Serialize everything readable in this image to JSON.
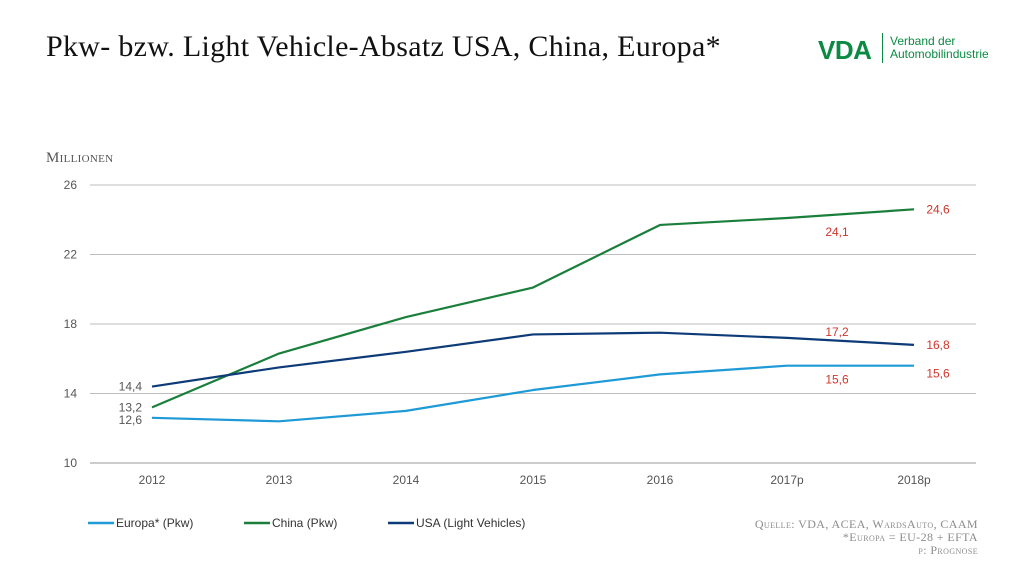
{
  "title": "Pkw- bzw. Light Vehicle-Absatz USA, China, Europa*",
  "logo": {
    "mark": "VDA",
    "line1": "Verband der",
    "line2": "Automobilindustrie",
    "color": "#0b8a43"
  },
  "unit_label": "Millionen",
  "source": [
    "Quelle: VDA, ACEA, WardsAuto, CAAM",
    "*Europa = EU-28 + EFTA",
    "p: Prognose"
  ],
  "chart_data": {
    "type": "line",
    "categories": [
      "2012",
      "2013",
      "2014",
      "2015",
      "2016",
      "2017p",
      "2018p"
    ],
    "ylim": [
      10,
      26
    ],
    "yticks": [
      10,
      14,
      18,
      22,
      26
    ],
    "grid": true,
    "legend_position": "bottom",
    "series": [
      {
        "name": "Europa* (Pkw)",
        "color": "#1f9ad6",
        "values": [
          12.6,
          12.4,
          13.0,
          14.2,
          15.1,
          15.6,
          15.6
        ]
      },
      {
        "name": "China (Pkw)",
        "color": "#1b7f3c",
        "values": [
          13.2,
          16.3,
          18.4,
          20.1,
          23.7,
          24.1,
          24.6
        ]
      },
      {
        "name": "USA (Light Vehicles)",
        "color": "#0d3b78",
        "values": [
          14.4,
          15.5,
          16.4,
          17.4,
          17.5,
          17.2,
          16.8
        ]
      }
    ],
    "data_labels": [
      {
        "series": "USA (Light Vehicles)",
        "category": "2012",
        "value": 14.4,
        "text": "14,4",
        "color": "#555555"
      },
      {
        "series": "China (Pkw)",
        "category": "2012",
        "value": 13.2,
        "text": "13,2",
        "color": "#555555"
      },
      {
        "series": "Europa* (Pkw)",
        "category": "2012",
        "value": 12.6,
        "text": "12,6",
        "color": "#555555"
      },
      {
        "series": "China (Pkw)",
        "category": "2017p",
        "value": 24.1,
        "text": "24,1",
        "color": "#d0352b"
      },
      {
        "series": "USA (Light Vehicles)",
        "category": "2017p",
        "value": 17.2,
        "text": "17,2",
        "color": "#d0352b"
      },
      {
        "series": "Europa* (Pkw)",
        "category": "2017p",
        "value": 15.6,
        "text": "15,6",
        "color": "#d0352b"
      },
      {
        "series": "China (Pkw)",
        "category": "2018p",
        "value": 24.6,
        "text": "24,6",
        "color": "#d0352b"
      },
      {
        "series": "USA (Light Vehicles)",
        "category": "2018p",
        "value": 16.8,
        "text": "16,8",
        "color": "#d0352b"
      },
      {
        "series": "Europa* (Pkw)",
        "category": "2018p",
        "value": 15.6,
        "text": "15,6",
        "color": "#d0352b"
      }
    ]
  }
}
